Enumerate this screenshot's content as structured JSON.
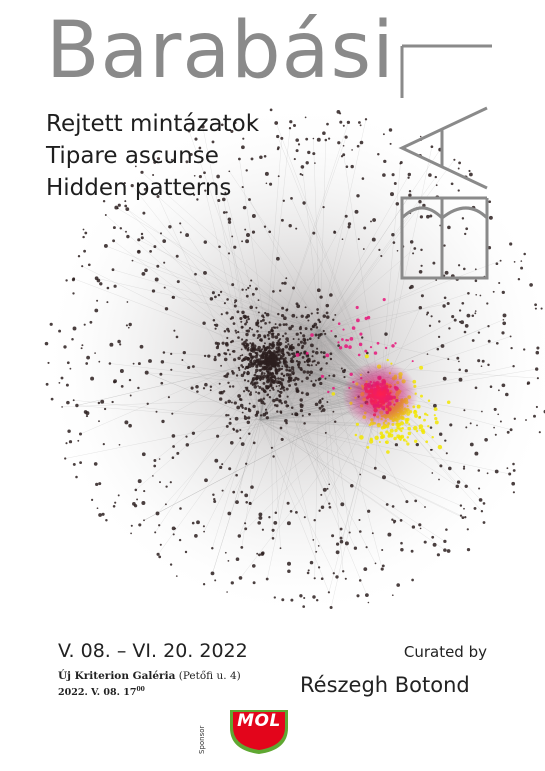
{
  "poster": {
    "title": "Barabási",
    "lab_mark": "LAB",
    "subtitles": [
      "Rejtett mintázatok",
      "Tipare ascunse",
      "Hidden patterns"
    ],
    "dates": "V. 08. – VI. 20. 2022",
    "venue_name": "Új Kriterion Galéria",
    "venue_address": "(Petőfi u. 4)",
    "opening_date": "2022. V. 08. 17",
    "opening_superscript": "00",
    "curated_by": "Curated by",
    "curator": "Részegh Botond",
    "sponsor_label": "Sponsor",
    "sponsor_logo_text": "MOL"
  },
  "colors": {
    "title_gray": "#8a8a8a",
    "text": "#1e1e1e",
    "node_dark": "#2b1f1f",
    "node_yellow": "#f2e600",
    "node_magenta": "#e6157a",
    "node_red": "#ff1e3c",
    "mol_red": "#e3051b",
    "mol_green": "#5fa832"
  },
  "icons": [
    "network-graph",
    "mol-logo"
  ]
}
